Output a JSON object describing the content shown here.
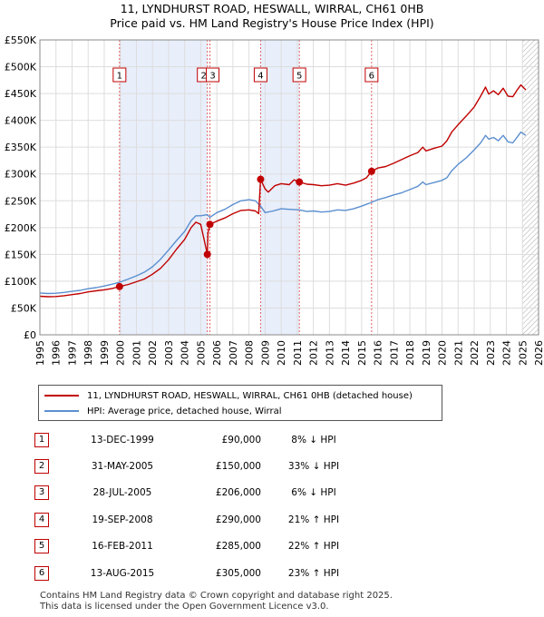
{
  "title": {
    "line1": "11, LYNDHURST ROAD, HESWALL, WIRRAL, CH61 0HB",
    "line2": "Price paid vs. HM Land Registry's House Price Index (HPI)"
  },
  "colors": {
    "property": "#c00000",
    "hpi": "#5b8fd0",
    "shade": "#e8eefa",
    "marker_line": "#e06060",
    "hatch": "#aaaaaa"
  },
  "chart_data": {
    "type": "line",
    "title": "Price paid vs. HM Land Registry's House Price Index (HPI)",
    "xlim": [
      1995,
      2026
    ],
    "ylim": [
      0,
      550000
    ],
    "x_ticks": [
      1995,
      1996,
      1997,
      1998,
      1999,
      2000,
      2001,
      2002,
      2003,
      2004,
      2005,
      2006,
      2007,
      2008,
      2009,
      2010,
      2011,
      2012,
      2013,
      2014,
      2015,
      2016,
      2017,
      2018,
      2019,
      2020,
      2021,
      2022,
      2023,
      2024,
      2025,
      2026
    ],
    "y_ticks": [
      {
        "value": 0,
        "label": "£0"
      },
      {
        "value": 50000,
        "label": "£50K"
      },
      {
        "value": 100000,
        "label": "£100K"
      },
      {
        "value": 150000,
        "label": "£150K"
      },
      {
        "value": 200000,
        "label": "£200K"
      },
      {
        "value": 250000,
        "label": "£250K"
      },
      {
        "value": 300000,
        "label": "£300K"
      },
      {
        "value": 350000,
        "label": "£350K"
      },
      {
        "value": 400000,
        "label": "£400K"
      },
      {
        "value": 450000,
        "label": "£450K"
      },
      {
        "value": 500000,
        "label": "£500K"
      },
      {
        "value": 550000,
        "label": "£550K"
      }
    ],
    "grid": true,
    "shaded_ranges": [
      [
        1999.95,
        2005.41
      ],
      [
        2008.72,
        2011.13
      ]
    ],
    "future_hatch_from": 2025.0,
    "series": [
      {
        "name": "11, LYNDHURST ROAD, HESWALL, WIRRAL, CH61 0HB (detached house)",
        "color": "#c00000",
        "points": [
          [
            1995.0,
            72000
          ],
          [
            1995.5,
            71000
          ],
          [
            1996.0,
            71500
          ],
          [
            1996.5,
            73000
          ],
          [
            1997.0,
            75000
          ],
          [
            1997.5,
            77000
          ],
          [
            1998.0,
            80000
          ],
          [
            1998.5,
            82000
          ],
          [
            1999.0,
            84000
          ],
          [
            1999.5,
            86500
          ],
          [
            1999.95,
            90000
          ],
          [
            2000.5,
            94000
          ],
          [
            2001.0,
            99000
          ],
          [
            2001.5,
            104000
          ],
          [
            2002.0,
            113000
          ],
          [
            2002.5,
            124000
          ],
          [
            2003.0,
            140000
          ],
          [
            2003.5,
            160000
          ],
          [
            2004.0,
            178000
          ],
          [
            2004.4,
            200000
          ],
          [
            2004.7,
            210000
          ],
          [
            2005.0,
            206000
          ],
          [
            2005.41,
            150000
          ],
          [
            2005.45,
            190000
          ],
          [
            2005.57,
            206000
          ],
          [
            2006.0,
            212000
          ],
          [
            2006.5,
            218000
          ],
          [
            2007.0,
            226000
          ],
          [
            2007.5,
            232000
          ],
          [
            2008.0,
            233000
          ],
          [
            2008.4,
            231000
          ],
          [
            2008.6,
            226000
          ],
          [
            2008.72,
            290000
          ],
          [
            2009.0,
            272000
          ],
          [
            2009.2,
            266000
          ],
          [
            2009.6,
            278000
          ],
          [
            2010.0,
            282000
          ],
          [
            2010.5,
            280000
          ],
          [
            2010.8,
            289000
          ],
          [
            2011.13,
            285000
          ],
          [
            2011.6,
            281000
          ],
          [
            2012.0,
            280000
          ],
          [
            2012.5,
            278000
          ],
          [
            2013.0,
            279000
          ],
          [
            2013.5,
            282000
          ],
          [
            2014.0,
            279000
          ],
          [
            2014.5,
            283000
          ],
          [
            2015.0,
            288000
          ],
          [
            2015.3,
            293000
          ],
          [
            2015.62,
            305000
          ],
          [
            2016.0,
            311000
          ],
          [
            2016.5,
            314000
          ],
          [
            2017.0,
            320000
          ],
          [
            2017.5,
            327000
          ],
          [
            2018.0,
            334000
          ],
          [
            2018.5,
            340000
          ],
          [
            2018.8,
            350000
          ],
          [
            2019.0,
            343000
          ],
          [
            2019.5,
            348000
          ],
          [
            2020.0,
            352000
          ],
          [
            2020.3,
            362000
          ],
          [
            2020.6,
            378000
          ],
          [
            2021.0,
            392000
          ],
          [
            2021.5,
            408000
          ],
          [
            2022.0,
            425000
          ],
          [
            2022.4,
            445000
          ],
          [
            2022.7,
            462000
          ],
          [
            2022.9,
            449000
          ],
          [
            2023.2,
            455000
          ],
          [
            2023.5,
            448000
          ],
          [
            2023.8,
            460000
          ],
          [
            2024.1,
            445000
          ],
          [
            2024.4,
            444000
          ],
          [
            2024.7,
            458000
          ],
          [
            2024.9,
            466000
          ],
          [
            2025.2,
            457000
          ]
        ]
      },
      {
        "name": "HPI: Average price, detached house, Wirral",
        "color": "#5b8fd0",
        "points": [
          [
            1995.0,
            78000
          ],
          [
            1995.5,
            77000
          ],
          [
            1996.0,
            77500
          ],
          [
            1996.5,
            79000
          ],
          [
            1997.0,
            81000
          ],
          [
            1997.5,
            83000
          ],
          [
            1998.0,
            86000
          ],
          [
            1998.5,
            88000
          ],
          [
            1999.0,
            91000
          ],
          [
            1999.5,
            94500
          ],
          [
            1999.95,
            98000
          ],
          [
            2000.5,
            104000
          ],
          [
            2001.0,
            110000
          ],
          [
            2001.5,
            117000
          ],
          [
            2002.0,
            127000
          ],
          [
            2002.5,
            141000
          ],
          [
            2003.0,
            158000
          ],
          [
            2003.5,
            176000
          ],
          [
            2004.0,
            193000
          ],
          [
            2004.4,
            213000
          ],
          [
            2004.7,
            222000
          ],
          [
            2005.0,
            222000
          ],
          [
            2005.41,
            224000
          ],
          [
            2005.57,
            219000
          ],
          [
            2006.0,
            228000
          ],
          [
            2006.5,
            234000
          ],
          [
            2007.0,
            243000
          ],
          [
            2007.5,
            250000
          ],
          [
            2008.0,
            252000
          ],
          [
            2008.4,
            250000
          ],
          [
            2008.72,
            240000
          ],
          [
            2009.0,
            228000
          ],
          [
            2009.5,
            231000
          ],
          [
            2010.0,
            235000
          ],
          [
            2010.5,
            234000
          ],
          [
            2011.13,
            233000
          ],
          [
            2011.6,
            230000
          ],
          [
            2012.0,
            231000
          ],
          [
            2012.5,
            229000
          ],
          [
            2013.0,
            230000
          ],
          [
            2013.5,
            233000
          ],
          [
            2014.0,
            232000
          ],
          [
            2014.5,
            235000
          ],
          [
            2015.0,
            240000
          ],
          [
            2015.62,
            247000
          ],
          [
            2016.0,
            252000
          ],
          [
            2016.5,
            256000
          ],
          [
            2017.0,
            261000
          ],
          [
            2017.5,
            265000
          ],
          [
            2018.0,
            271000
          ],
          [
            2018.5,
            277000
          ],
          [
            2018.8,
            285000
          ],
          [
            2019.0,
            280000
          ],
          [
            2019.5,
            284000
          ],
          [
            2020.0,
            288000
          ],
          [
            2020.3,
            293000
          ],
          [
            2020.6,
            306000
          ],
          [
            2021.0,
            318000
          ],
          [
            2021.5,
            330000
          ],
          [
            2022.0,
            345000
          ],
          [
            2022.4,
            358000
          ],
          [
            2022.7,
            372000
          ],
          [
            2022.9,
            365000
          ],
          [
            2023.2,
            368000
          ],
          [
            2023.5,
            362000
          ],
          [
            2023.8,
            372000
          ],
          [
            2024.1,
            360000
          ],
          [
            2024.4,
            358000
          ],
          [
            2024.7,
            370000
          ],
          [
            2024.9,
            378000
          ],
          [
            2025.2,
            372000
          ]
        ]
      }
    ],
    "annotations": [
      {
        "label": "1",
        "x": 1999.95,
        "y": 90000
      },
      {
        "label": "2",
        "x": 2005.41,
        "y": 150000
      },
      {
        "label": "3",
        "x": 2005.57,
        "y": 206000
      },
      {
        "label": "4",
        "x": 2008.72,
        "y": 290000
      },
      {
        "label": "5",
        "x": 2011.13,
        "y": 285000
      },
      {
        "label": "6",
        "x": 2015.62,
        "y": 305000
      }
    ]
  },
  "legend": {
    "property_label": "11, LYNDHURST ROAD, HESWALL, WIRRAL, CH61 0HB (detached house)",
    "hpi_label": "HPI: Average price, detached house, Wirral"
  },
  "transactions": [
    {
      "num": "1",
      "date": "13-DEC-1999",
      "price": "£90,000",
      "hpi": "8% ↓ HPI"
    },
    {
      "num": "2",
      "date": "31-MAY-2005",
      "price": "£150,000",
      "hpi": "33% ↓ HPI"
    },
    {
      "num": "3",
      "date": "28-JUL-2005",
      "price": "£206,000",
      "hpi": "6% ↓ HPI"
    },
    {
      "num": "4",
      "date": "19-SEP-2008",
      "price": "£290,000",
      "hpi": "21% ↑ HPI"
    },
    {
      "num": "5",
      "date": "16-FEB-2011",
      "price": "£285,000",
      "hpi": "22% ↑ HPI"
    },
    {
      "num": "6",
      "date": "13-AUG-2015",
      "price": "£305,000",
      "hpi": "23% ↑ HPI"
    }
  ],
  "footer": {
    "line1": "Contains HM Land Registry data © Crown copyright and database right 2025.",
    "line2": "This data is licensed under the Open Government Licence v3.0."
  }
}
